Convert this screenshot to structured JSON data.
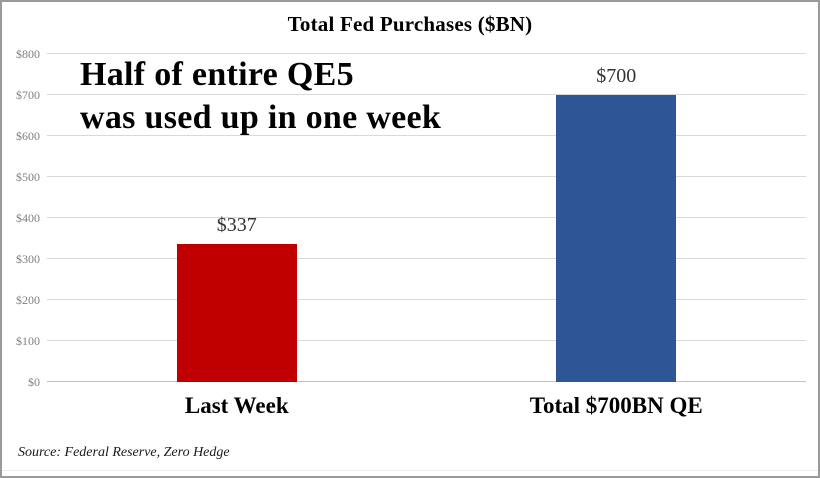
{
  "chart_data": {
    "type": "bar",
    "title": "Total Fed Purchases ($BN)",
    "categories": [
      "Last Week",
      "Total $700BN QE"
    ],
    "values": [
      337,
      700
    ],
    "value_labels": [
      "$337",
      "$700"
    ],
    "bar_colors": [
      "#C00000",
      "#2E5596"
    ],
    "ylim": [
      0,
      800
    ],
    "ytick_interval": 100,
    "ytick_labels": [
      "$0",
      "$100",
      "$200",
      "$300",
      "$400",
      "$500",
      "$600",
      "$700",
      "$800"
    ],
    "grid": true,
    "legend": "none",
    "annotation": {
      "line1": "Half of entire QE5",
      "line2": "was used up in one week"
    },
    "source": "Source: Federal Reserve, Zero Hedge"
  },
  "colors": {
    "bar_red": "#C00000",
    "bar_blue": "#2E5596",
    "gridline": "#D9D9D9",
    "axis_label_gray": "#7F7F7F",
    "text_black": "#000000"
  }
}
